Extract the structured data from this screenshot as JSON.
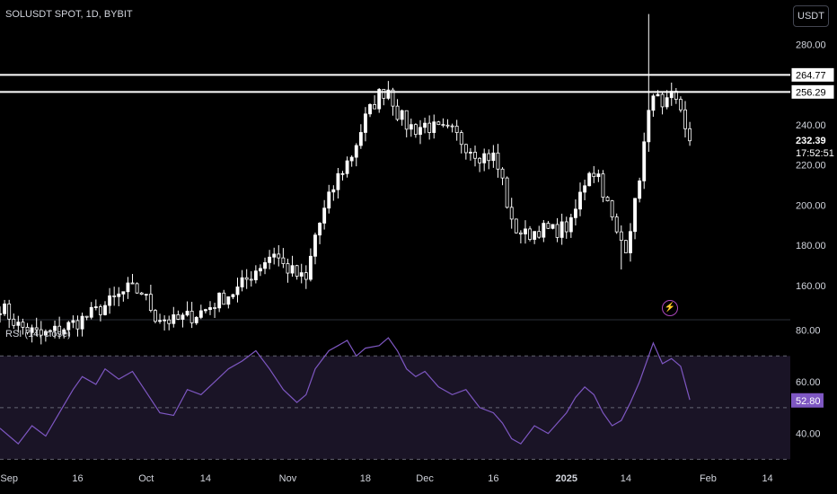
{
  "header": {
    "symbol_title": "SOLUSDT SPOT, 1D, BYBIT",
    "currency_button": "USDT"
  },
  "colors": {
    "background": "#000000",
    "candle": "#ffffff",
    "rsi_line": "#7e57c2",
    "rsi_band_fill": "#1a1426",
    "rsi_badge": "#7e57c2",
    "overbought_fill": "#1f3d2e",
    "level_line": "#ffffff",
    "text": "#d1d4dc",
    "event_icon": "#ab47bc"
  },
  "event_icon": "lightning-icon",
  "chart_data": [
    {
      "type": "candlestick",
      "title": "SOLUSDT SPOT, 1D, BYBIT",
      "ylim": [
        143,
        302
      ],
      "xlim": [
        "2024-08-30",
        "2025-02-19"
      ],
      "y_ticks": [
        "160.00",
        "180.00",
        "200.00",
        "220.00",
        "240.00",
        "280.00"
      ],
      "price_labels": [
        {
          "text": "264.77",
          "value": 264.77
        },
        {
          "text": "256.29",
          "value": 256.29
        }
      ],
      "last_price": {
        "text": "232.39",
        "value": 232.39
      },
      "countdown": "17:52:51",
      "horizontal_levels": [
        264.77,
        256.29
      ],
      "x_ticks": [
        {
          "label": "Sep",
          "date": "2024-09-01",
          "bold": false
        },
        {
          "label": "16",
          "date": "2024-09-16",
          "bold": false
        },
        {
          "label": "Oct",
          "date": "2024-10-01",
          "bold": false
        },
        {
          "label": "14",
          "date": "2024-10-14",
          "bold": false
        },
        {
          "label": "Nov",
          "date": "2024-11-01",
          "bold": false
        },
        {
          "label": "18",
          "date": "2024-11-18",
          "bold": false
        },
        {
          "label": "Dec",
          "date": "2024-12-01",
          "bold": false
        },
        {
          "label": "16",
          "date": "2024-12-16",
          "bold": false
        },
        {
          "label": "2025",
          "date": "2025-01-01",
          "bold": true
        },
        {
          "label": "14",
          "date": "2025-01-14",
          "bold": false
        },
        {
          "label": "Feb",
          "date": "2025-02-01",
          "bold": false
        },
        {
          "label": "14",
          "date": "2025-02-14",
          "bold": false
        }
      ],
      "close_points": [
        [
          "2024-08-30",
          150
        ],
        [
          "2024-09-03",
          140
        ],
        [
          "2024-09-08",
          135
        ],
        [
          "2024-09-12",
          138
        ],
        [
          "2024-09-16",
          142
        ],
        [
          "2024-09-20",
          147
        ],
        [
          "2024-09-24",
          153
        ],
        [
          "2024-09-27",
          158
        ],
        [
          "2024-09-30",
          157
        ],
        [
          "2024-10-01",
          153
        ],
        [
          "2024-10-03",
          145
        ],
        [
          "2024-10-07",
          142
        ],
        [
          "2024-10-11",
          145
        ],
        [
          "2024-10-14",
          148
        ],
        [
          "2024-10-17",
          153
        ],
        [
          "2024-10-21",
          158
        ],
        [
          "2024-10-25",
          168
        ],
        [
          "2024-10-29",
          177
        ],
        [
          "2024-10-31",
          170
        ],
        [
          "2024-11-03",
          165
        ],
        [
          "2024-11-05",
          162
        ],
        [
          "2024-11-07",
          185
        ],
        [
          "2024-11-10",
          203
        ],
        [
          "2024-11-12",
          214
        ],
        [
          "2024-11-15",
          225
        ],
        [
          "2024-11-18",
          243
        ],
        [
          "2024-11-21",
          255
        ],
        [
          "2024-11-23",
          258
        ],
        [
          "2024-11-25",
          246
        ],
        [
          "2024-11-27",
          240
        ],
        [
          "2024-11-29",
          238
        ],
        [
          "2024-12-01",
          240
        ],
        [
          "2024-12-04",
          237
        ],
        [
          "2024-12-07",
          236
        ],
        [
          "2024-12-10",
          230
        ],
        [
          "2024-12-13",
          225
        ],
        [
          "2024-12-16",
          224
        ],
        [
          "2024-12-18",
          212
        ],
        [
          "2024-12-20",
          190
        ],
        [
          "2024-12-23",
          185
        ],
        [
          "2024-12-26",
          188
        ],
        [
          "2024-12-29",
          187
        ],
        [
          "2025-01-02",
          190
        ],
        [
          "2025-01-04",
          205
        ],
        [
          "2025-01-06",
          218
        ],
        [
          "2025-01-08",
          215
        ],
        [
          "2025-01-10",
          200
        ],
        [
          "2025-01-12",
          185
        ],
        [
          "2025-01-14",
          180
        ],
        [
          "2025-01-16",
          200
        ],
        [
          "2025-01-18",
          230
        ],
        [
          "2025-01-20",
          258
        ],
        [
          "2025-01-22",
          246
        ],
        [
          "2025-01-24",
          253
        ],
        [
          "2025-01-26",
          248
        ],
        [
          "2025-01-28",
          232
        ]
      ]
    },
    {
      "type": "line",
      "title": "RSI (14, close)",
      "ylim": [
        27,
        84
      ],
      "y_ticks": [
        "40.00",
        "60.00",
        "80.00"
      ],
      "bands": [
        70,
        50,
        30
      ],
      "current": {
        "text": "52.80",
        "value": 52.8
      },
      "points": [
        [
          "2024-08-30",
          42
        ],
        [
          "2024-09-03",
          36
        ],
        [
          "2024-09-06",
          43
        ],
        [
          "2024-09-09",
          39
        ],
        [
          "2024-09-12",
          48
        ],
        [
          "2024-09-15",
          57
        ],
        [
          "2024-09-17",
          62
        ],
        [
          "2024-09-20",
          59
        ],
        [
          "2024-09-22",
          65
        ],
        [
          "2024-09-25",
          61
        ],
        [
          "2024-09-28",
          64
        ],
        [
          "2024-10-01",
          56
        ],
        [
          "2024-10-04",
          48
        ],
        [
          "2024-10-07",
          47
        ],
        [
          "2024-10-10",
          57
        ],
        [
          "2024-10-13",
          55
        ],
        [
          "2024-10-16",
          60
        ],
        [
          "2024-10-19",
          65
        ],
        [
          "2024-10-22",
          68
        ],
        [
          "2024-10-25",
          72
        ],
        [
          "2024-10-28",
          65
        ],
        [
          "2024-10-31",
          57
        ],
        [
          "2024-11-03",
          52
        ],
        [
          "2024-11-05",
          55
        ],
        [
          "2024-11-07",
          65
        ],
        [
          "2024-11-10",
          72
        ],
        [
          "2024-11-12",
          74
        ],
        [
          "2024-11-14",
          76
        ],
        [
          "2024-11-16",
          70
        ],
        [
          "2024-11-18",
          73
        ],
        [
          "2024-11-21",
          74
        ],
        [
          "2024-11-23",
          77
        ],
        [
          "2024-11-25",
          72
        ],
        [
          "2024-11-27",
          65
        ],
        [
          "2024-11-29",
          62
        ],
        [
          "2024-12-01",
          64
        ],
        [
          "2024-12-04",
          58
        ],
        [
          "2024-12-07",
          55
        ],
        [
          "2024-12-10",
          57
        ],
        [
          "2024-12-13",
          50
        ],
        [
          "2024-12-16",
          48
        ],
        [
          "2024-12-18",
          44
        ],
        [
          "2024-12-20",
          38
        ],
        [
          "2024-12-22",
          36
        ],
        [
          "2024-12-25",
          43
        ],
        [
          "2024-12-28",
          40
        ],
        [
          "2025-01-01",
          48
        ],
        [
          "2025-01-03",
          54
        ],
        [
          "2025-01-05",
          58
        ],
        [
          "2025-01-07",
          55
        ],
        [
          "2025-01-09",
          48
        ],
        [
          "2025-01-11",
          43
        ],
        [
          "2025-01-13",
          45
        ],
        [
          "2025-01-15",
          52
        ],
        [
          "2025-01-17",
          60
        ],
        [
          "2025-01-20",
          75
        ],
        [
          "2025-01-22",
          67
        ],
        [
          "2025-01-24",
          69
        ],
        [
          "2025-01-26",
          66
        ],
        [
          "2025-01-28",
          53
        ]
      ]
    }
  ]
}
